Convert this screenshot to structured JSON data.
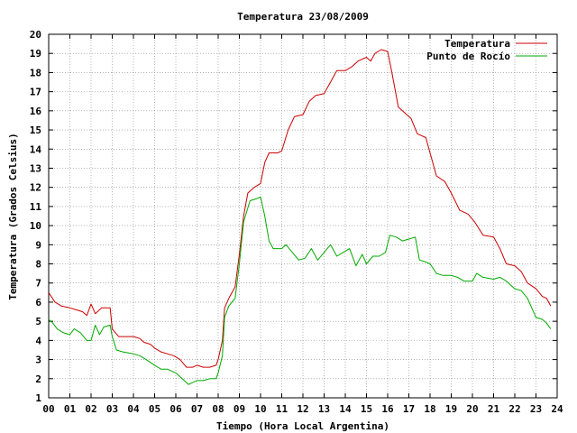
{
  "chart_data": {
    "type": "line",
    "title": "Temperatura 23/08/2009",
    "xlabel": "Tiempo (Hora Local Argentina)",
    "ylabel": "Temperatura (Grados Celsius)",
    "xlim": [
      0,
      24
    ],
    "ylim": [
      1,
      20
    ],
    "x_ticks": [
      "00",
      "01",
      "02",
      "03",
      "04",
      "05",
      "06",
      "07",
      "08",
      "09",
      "10",
      "11",
      "12",
      "13",
      "14",
      "15",
      "16",
      "17",
      "18",
      "19",
      "20",
      "21",
      "22",
      "23",
      "24"
    ],
    "y_ticks": [
      1,
      2,
      3,
      4,
      5,
      6,
      7,
      8,
      9,
      10,
      11,
      12,
      13,
      14,
      15,
      16,
      17,
      18,
      19,
      20
    ],
    "grid": true,
    "legend_position": "top-right",
    "colors": {
      "temperatura": "#cc0000",
      "rocio": "#00aa00",
      "grid": "#888888",
      "axis": "#000000"
    },
    "series": [
      {
        "name": "Temperatura",
        "color": "#cc0000",
        "points": [
          [
            0.0,
            6.5
          ],
          [
            0.3,
            6.0
          ],
          [
            0.6,
            5.8
          ],
          [
            1.0,
            5.7
          ],
          [
            1.3,
            5.6
          ],
          [
            1.6,
            5.5
          ],
          [
            1.8,
            5.3
          ],
          [
            2.0,
            5.9
          ],
          [
            2.2,
            5.4
          ],
          [
            2.5,
            5.7
          ],
          [
            2.9,
            5.7
          ],
          [
            3.0,
            4.6
          ],
          [
            3.3,
            4.2
          ],
          [
            3.6,
            4.2
          ],
          [
            4.0,
            4.2
          ],
          [
            4.3,
            4.1
          ],
          [
            4.5,
            3.9
          ],
          [
            4.8,
            3.8
          ],
          [
            5.0,
            3.6
          ],
          [
            5.3,
            3.4
          ],
          [
            5.6,
            3.3
          ],
          [
            5.9,
            3.2
          ],
          [
            6.2,
            3.0
          ],
          [
            6.5,
            2.6
          ],
          [
            6.8,
            2.6
          ],
          [
            7.0,
            2.7
          ],
          [
            7.3,
            2.6
          ],
          [
            7.6,
            2.6
          ],
          [
            7.9,
            2.7
          ],
          [
            8.0,
            3.0
          ],
          [
            8.2,
            4.0
          ],
          [
            8.3,
            5.7
          ],
          [
            8.5,
            6.2
          ],
          [
            8.8,
            6.8
          ],
          [
            9.0,
            8.5
          ],
          [
            9.2,
            10.5
          ],
          [
            9.4,
            11.7
          ],
          [
            9.7,
            12.0
          ],
          [
            10.0,
            12.2
          ],
          [
            10.2,
            13.3
          ],
          [
            10.4,
            13.8
          ],
          [
            10.8,
            13.8
          ],
          [
            11.0,
            13.9
          ],
          [
            11.3,
            15.0
          ],
          [
            11.6,
            15.7
          ],
          [
            12.0,
            15.8
          ],
          [
            12.3,
            16.5
          ],
          [
            12.6,
            16.8
          ],
          [
            13.0,
            16.9
          ],
          [
            13.3,
            17.5
          ],
          [
            13.6,
            18.1
          ],
          [
            14.0,
            18.1
          ],
          [
            14.3,
            18.3
          ],
          [
            14.6,
            18.6
          ],
          [
            15.0,
            18.8
          ],
          [
            15.2,
            18.6
          ],
          [
            15.4,
            19.0
          ],
          [
            15.7,
            19.2
          ],
          [
            16.0,
            19.1
          ],
          [
            16.2,
            18.0
          ],
          [
            16.5,
            16.2
          ],
          [
            16.8,
            15.9
          ],
          [
            17.1,
            15.6
          ],
          [
            17.4,
            14.8
          ],
          [
            17.8,
            14.6
          ],
          [
            18.0,
            13.8
          ],
          [
            18.3,
            12.6
          ],
          [
            18.7,
            12.3
          ],
          [
            19.0,
            11.7
          ],
          [
            19.4,
            10.8
          ],
          [
            19.8,
            10.6
          ],
          [
            20.1,
            10.2
          ],
          [
            20.5,
            9.5
          ],
          [
            21.0,
            9.4
          ],
          [
            21.3,
            8.8
          ],
          [
            21.6,
            8.0
          ],
          [
            22.0,
            7.9
          ],
          [
            22.3,
            7.6
          ],
          [
            22.6,
            7.0
          ],
          [
            23.0,
            6.7
          ],
          [
            23.3,
            6.3
          ],
          [
            23.5,
            6.2
          ],
          [
            23.7,
            5.8
          ]
        ]
      },
      {
        "name": "Punto de Rocío",
        "color": "#00aa00",
        "points": [
          [
            0.0,
            5.1
          ],
          [
            0.2,
            4.9
          ],
          [
            0.4,
            4.6
          ],
          [
            0.7,
            4.4
          ],
          [
            1.0,
            4.3
          ],
          [
            1.2,
            4.6
          ],
          [
            1.5,
            4.4
          ],
          [
            1.8,
            4.0
          ],
          [
            2.0,
            4.0
          ],
          [
            2.2,
            4.8
          ],
          [
            2.4,
            4.3
          ],
          [
            2.6,
            4.7
          ],
          [
            2.9,
            4.8
          ],
          [
            3.0,
            4.2
          ],
          [
            3.2,
            3.5
          ],
          [
            3.5,
            3.4
          ],
          [
            4.0,
            3.3
          ],
          [
            4.3,
            3.2
          ],
          [
            4.6,
            3.0
          ],
          [
            5.0,
            2.7
          ],
          [
            5.3,
            2.5
          ],
          [
            5.6,
            2.5
          ],
          [
            6.0,
            2.3
          ],
          [
            6.3,
            2.0
          ],
          [
            6.6,
            1.7
          ],
          [
            7.0,
            1.9
          ],
          [
            7.3,
            1.9
          ],
          [
            7.6,
            2.0
          ],
          [
            7.9,
            2.0
          ],
          [
            8.0,
            2.3
          ],
          [
            8.2,
            3.2
          ],
          [
            8.3,
            5.2
          ],
          [
            8.5,
            5.8
          ],
          [
            8.8,
            6.2
          ],
          [
            9.0,
            8.0
          ],
          [
            9.2,
            10.2
          ],
          [
            9.5,
            11.3
          ],
          [
            9.8,
            11.4
          ],
          [
            10.0,
            11.5
          ],
          [
            10.2,
            10.5
          ],
          [
            10.4,
            9.2
          ],
          [
            10.6,
            8.8
          ],
          [
            11.0,
            8.8
          ],
          [
            11.2,
            9.0
          ],
          [
            11.5,
            8.6
          ],
          [
            11.8,
            8.2
          ],
          [
            12.1,
            8.3
          ],
          [
            12.4,
            8.8
          ],
          [
            12.7,
            8.2
          ],
          [
            13.0,
            8.6
          ],
          [
            13.3,
            9.0
          ],
          [
            13.6,
            8.4
          ],
          [
            13.9,
            8.6
          ],
          [
            14.2,
            8.8
          ],
          [
            14.5,
            7.9
          ],
          [
            14.8,
            8.5
          ],
          [
            15.0,
            8.0
          ],
          [
            15.3,
            8.4
          ],
          [
            15.6,
            8.4
          ],
          [
            15.9,
            8.6
          ],
          [
            16.1,
            9.5
          ],
          [
            16.4,
            9.4
          ],
          [
            16.7,
            9.2
          ],
          [
            17.0,
            9.3
          ],
          [
            17.3,
            9.4
          ],
          [
            17.5,
            8.2
          ],
          [
            17.8,
            8.1
          ],
          [
            18.0,
            8.0
          ],
          [
            18.3,
            7.5
          ],
          [
            18.6,
            7.4
          ],
          [
            19.0,
            7.4
          ],
          [
            19.3,
            7.3
          ],
          [
            19.6,
            7.1
          ],
          [
            20.0,
            7.1
          ],
          [
            20.2,
            7.5
          ],
          [
            20.5,
            7.3
          ],
          [
            21.0,
            7.2
          ],
          [
            21.3,
            7.3
          ],
          [
            21.6,
            7.1
          ],
          [
            22.0,
            6.7
          ],
          [
            22.3,
            6.6
          ],
          [
            22.6,
            6.2
          ],
          [
            23.0,
            5.2
          ],
          [
            23.3,
            5.1
          ],
          [
            23.5,
            4.9
          ],
          [
            23.7,
            4.6
          ]
        ]
      }
    ]
  }
}
